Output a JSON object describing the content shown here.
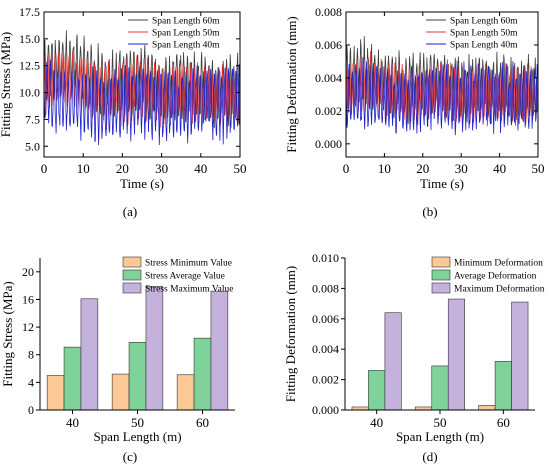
{
  "chart_data": [
    {
      "id": "a",
      "type": "line",
      "caption": "(a)",
      "xlabel": "Time (s)",
      "ylabel": "Fitting Stress (MPa)",
      "xlim": [
        0,
        50
      ],
      "ylim": [
        4,
        17.5
      ],
      "xticks": [
        0,
        10,
        20,
        30,
        40,
        50
      ],
      "yticks": [
        5.0,
        7.5,
        10.0,
        12.5,
        15.0,
        17.5
      ],
      "ytick_labels": [
        "5.0",
        "7.5",
        "10.0",
        "12.5",
        "15.0",
        "17.5"
      ],
      "legend_position": "top-right",
      "series": [
        {
          "name": "Span Length 60m",
          "color": "#404040",
          "amp": 3.4,
          "mid": 10.8,
          "anchors_x": [
            0,
            5,
            10,
            15,
            20,
            25,
            30,
            35,
            40,
            45,
            50
          ],
          "anchors_mid": [
            11.5,
            12.5,
            12.0,
            10.5,
            10.8,
            11.2,
            10.2,
            10.8,
            10.5,
            10.0,
            10.6
          ]
        },
        {
          "name": "Span Length 50m",
          "color": "#e83030",
          "amp": 3.0,
          "mid": 10.2,
          "anchors_x": [
            0,
            5,
            10,
            15,
            20,
            25,
            30,
            35,
            40,
            45,
            50
          ],
          "anchors_mid": [
            11.0,
            11.5,
            10.8,
            9.8,
            10.0,
            10.6,
            9.6,
            10.2,
            9.8,
            9.6,
            10.0
          ]
        },
        {
          "name": "Span Length 40m",
          "color": "#2222cc",
          "amp": 3.6,
          "mid": 9.2,
          "anchors_x": [
            0,
            5,
            10,
            15,
            20,
            25,
            30,
            35,
            40,
            45,
            50
          ],
          "anchors_mid": [
            9.8,
            9.5,
            9.0,
            8.8,
            9.2,
            9.4,
            8.8,
            9.0,
            9.4,
            9.0,
            9.6
          ]
        }
      ]
    },
    {
      "id": "b",
      "type": "line",
      "caption": "(b)",
      "xlabel": "Time (s)",
      "ylabel": "Fitting Deformation (mm)",
      "xlim": [
        0,
        50
      ],
      "ylim": [
        -0.0008,
        0.008
      ],
      "xticks": [
        0,
        10,
        20,
        30,
        40,
        50
      ],
      "yticks": [
        0.0,
        0.002,
        0.004,
        0.006,
        0.008
      ],
      "ytick_labels": [
        "0.000",
        "0.002",
        "0.004",
        "0.006",
        "0.008"
      ],
      "legend_position": "top-right",
      "series": [
        {
          "name": "Span Length 60m",
          "color": "#404040",
          "amp": 0.0021,
          "mid": 0.0036,
          "anchors_x": [
            0,
            5,
            10,
            15,
            20,
            25,
            30,
            35,
            40,
            45,
            50
          ],
          "anchors_mid": [
            0.004,
            0.0042,
            0.0038,
            0.0034,
            0.0036,
            0.0038,
            0.0032,
            0.0035,
            0.0033,
            0.0031,
            0.0034
          ]
        },
        {
          "name": "Span Length 50m",
          "color": "#e83030",
          "amp": 0.0019,
          "mid": 0.0031,
          "anchors_x": [
            0,
            5,
            10,
            15,
            20,
            25,
            30,
            35,
            40,
            45,
            50
          ],
          "anchors_mid": [
            0.0034,
            0.0036,
            0.0033,
            0.0029,
            0.0031,
            0.0033,
            0.0028,
            0.0031,
            0.0029,
            0.0028,
            0.003
          ]
        },
        {
          "name": "Span Length 40m",
          "color": "#2222cc",
          "amp": 0.0022,
          "mid": 0.0028,
          "anchors_x": [
            0,
            5,
            10,
            15,
            20,
            25,
            30,
            35,
            40,
            45,
            50
          ],
          "anchors_mid": [
            0.003,
            0.0029,
            0.0027,
            0.0026,
            0.0028,
            0.0029,
            0.0026,
            0.0027,
            0.0029,
            0.0027,
            0.003
          ]
        }
      ]
    },
    {
      "id": "c",
      "type": "bar",
      "caption": "(c)",
      "xlabel": "Span Length (m)",
      "ylabel": "Fitting Stress (MPa)",
      "categories": [
        "40",
        "50",
        "60"
      ],
      "ylim": [
        0,
        22
      ],
      "yticks": [
        0,
        4,
        8,
        12,
        16,
        20
      ],
      "ytick_labels": [
        "0",
        "4",
        "8",
        "12",
        "16",
        "20"
      ],
      "legend_position": "top-right",
      "series": [
        {
          "name": "Stress Minimum Value",
          "color": "#fbc896",
          "values": [
            5.0,
            5.2,
            5.1
          ]
        },
        {
          "name": "Stress Average Value",
          "color": "#7fd39a",
          "values": [
            9.1,
            9.8,
            10.4
          ]
        },
        {
          "name": "Stress Maximum Value",
          "color": "#c5b2dc",
          "values": [
            16.1,
            17.9,
            17.2
          ]
        }
      ]
    },
    {
      "id": "d",
      "type": "bar",
      "caption": "(d)",
      "xlabel": "Span Length (m)",
      "ylabel": "Fitting Deformation (mm)",
      "categories": [
        "40",
        "50",
        "60"
      ],
      "ylim": [
        0,
        0.01
      ],
      "yticks": [
        0.0,
        0.002,
        0.004,
        0.006,
        0.008,
        0.01
      ],
      "ytick_labels": [
        "0.000",
        "0.002",
        "0.004",
        "0.006",
        "0.008",
        "0.010"
      ],
      "legend_position": "top-right",
      "series": [
        {
          "name": "Minimum Deformation",
          "color": "#fbc896",
          "values": [
            0.0002,
            0.0002,
            0.0003
          ]
        },
        {
          "name": "Average Deformation",
          "color": "#7fd39a",
          "values": [
            0.0026,
            0.0029,
            0.0032
          ]
        },
        {
          "name": "Maximum Deformation",
          "color": "#c5b2dc",
          "values": [
            0.0064,
            0.0073,
            0.0071
          ]
        }
      ]
    }
  ]
}
